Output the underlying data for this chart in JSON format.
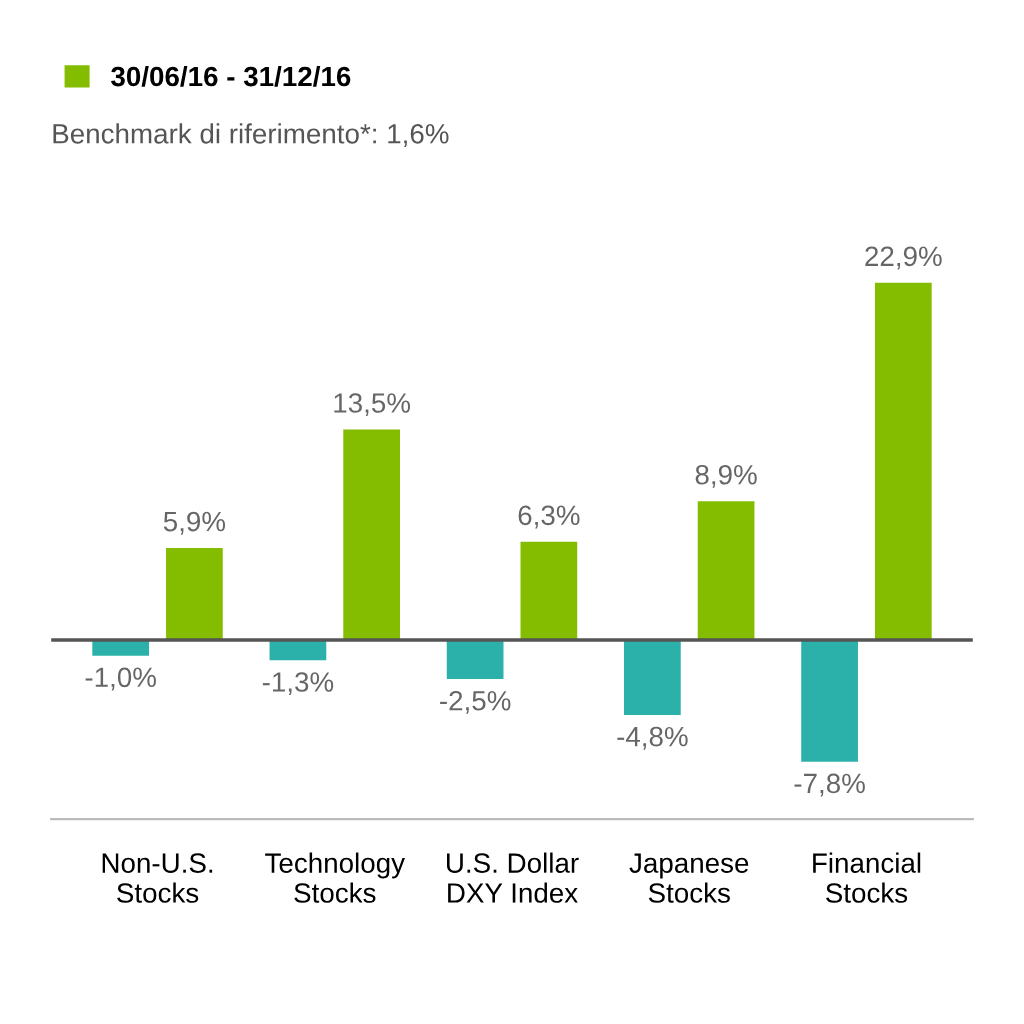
{
  "chart_data": {
    "type": "bar",
    "subtitle": "Benchmark di riferimento*: 1,6%",
    "categories": [
      "Non-U.S.\nStocks",
      "Technology\nStocks",
      "U.S. Dollar\nDXY Index",
      "Japanese\nStocks",
      "Financial\nStocks"
    ],
    "series": [
      {
        "color": "#2bb0aa",
        "values": [
          -1.0,
          -1.3,
          -2.5,
          -4.8,
          -7.8
        ],
        "value_labels": [
          "-1,0%",
          "-1,3%",
          "-2,5%",
          "-4,8%",
          "-7,8%"
        ]
      },
      {
        "name": "30/06/16 - 31/12/16",
        "color": "#84bd00",
        "values": [
          5.9,
          13.5,
          6.3,
          8.9,
          22.9
        ],
        "value_labels": [
          "5,9%",
          "13,5%",
          "6,3%",
          "8,9%",
          "22,9%"
        ]
      }
    ],
    "ref_lines": [
      {
        "axis": "y",
        "value": 0,
        "color": "#555555"
      }
    ],
    "legend": "top left"
  }
}
